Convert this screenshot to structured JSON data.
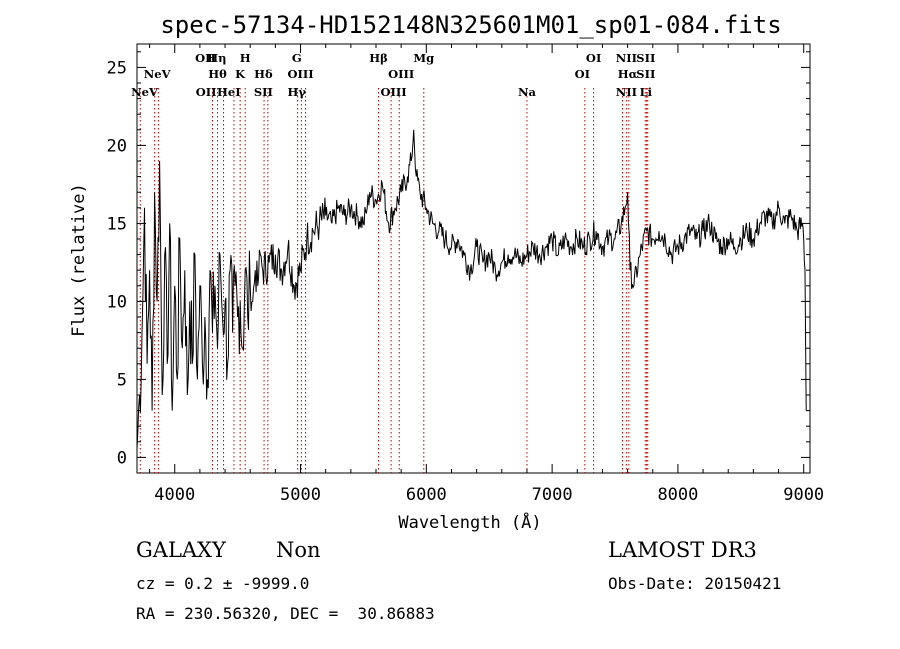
{
  "chart_data": {
    "type": "line",
    "title": "spec-57134-HD152148N325601M01_sp01-084.fits",
    "xlabel": "Wavelength (Å)",
    "ylabel": "Flux (relative)",
    "xlim": [
      3700,
      9050
    ],
    "ylim": [
      -1,
      26.5
    ],
    "xticks": [
      4000,
      5000,
      6000,
      7000,
      8000,
      9000
    ],
    "yticks": [
      0,
      5,
      10,
      15,
      20,
      25
    ],
    "series": [
      {
        "name": "spectrum",
        "x": [
          3700,
          3720,
          3740,
          3760,
          3780,
          3800,
          3820,
          3840,
          3860,
          3880,
          3900,
          3920,
          3940,
          3960,
          3980,
          4000,
          4020,
          4040,
          4060,
          4080,
          4100,
          4120,
          4140,
          4160,
          4180,
          4200,
          4220,
          4240,
          4260,
          4280,
          4300,
          4320,
          4340,
          4360,
          4380,
          4400,
          4420,
          4440,
          4460,
          4480,
          4500,
          4520,
          4540,
          4560,
          4580,
          4600,
          4620,
          4640,
          4660,
          4680,
          4700,
          4750,
          4800,
          4850,
          4900,
          4950,
          5000,
          5050,
          5100,
          5150,
          5200,
          5250,
          5300,
          5350,
          5400,
          5450,
          5500,
          5530,
          5550,
          5600,
          5650,
          5700,
          5750,
          5800,
          5850,
          5880,
          5900,
          5920,
          5950,
          6000,
          6050,
          6100,
          6150,
          6200,
          6250,
          6300,
          6350,
          6400,
          6450,
          6500,
          6550,
          6600,
          6650,
          6700,
          6750,
          6800,
          6850,
          6900,
          6950,
          7000,
          7050,
          7100,
          7150,
          7200,
          7250,
          7300,
          7350,
          7400,
          7450,
          7500,
          7550,
          7580,
          7600,
          7620,
          7650,
          7700,
          7750,
          7800,
          7850,
          7900,
          7950,
          8000,
          8050,
          8100,
          8150,
          8200,
          8250,
          8300,
          8350,
          8400,
          8450,
          8500,
          8550,
          8600,
          8650,
          8700,
          8750,
          8800,
          8850,
          8900,
          8950,
          8990,
          9000,
          9010,
          9020
        ],
        "values": [
          0.5,
          4,
          8,
          16,
          6,
          12,
          3,
          17,
          10,
          19,
          4,
          13,
          6,
          15,
          3,
          11,
          5,
          14,
          7,
          12,
          4,
          10,
          6,
          13,
          5,
          11,
          6,
          9,
          5,
          12,
          8,
          11,
          7,
          13,
          9,
          10,
          6,
          12,
          8,
          11,
          9,
          10,
          7,
          12,
          9,
          11,
          10,
          12,
          11,
          13,
          12,
          12.5,
          13,
          12,
          13.5,
          11,
          12,
          14,
          14.5,
          15,
          15.5,
          15,
          16,
          15.5,
          16,
          15.5,
          15,
          16,
          17,
          16.5,
          17.5,
          15,
          16,
          17,
          18,
          19,
          21,
          18,
          17,
          16,
          15,
          14.5,
          14,
          13.5,
          14,
          13,
          12,
          13.5,
          12.5,
          13,
          12,
          12.5,
          13,
          13,
          12.5,
          13,
          13.5,
          13,
          13.5,
          14,
          13,
          14,
          13.5,
          14,
          13.5,
          14,
          14.5,
          13.5,
          14,
          14,
          15,
          16,
          17,
          12,
          11,
          13,
          14.5,
          14,
          14.5,
          14,
          13,
          13.5,
          14,
          14.5,
          14,
          14.5,
          15,
          14,
          13.5,
          14,
          13.5,
          14,
          14.5,
          14,
          15,
          15.5,
          15,
          16,
          15,
          15.5,
          14.5,
          15,
          14,
          12,
          3
        ]
      }
    ],
    "lines": [
      {
        "wave": 3840,
        "label": "NeV",
        "lx": 3860,
        "row": 1
      },
      {
        "wave": 3870,
        "label": "NeV",
        "lx": 3760,
        "row": 2
      },
      {
        "wave": 3726,
        "label": "OII",
        "lx": 4245,
        "row": 0
      },
      {
        "wave": 4300,
        "label": "OII",
        "lx": 4250,
        "row": 2
      },
      {
        "wave": 4340,
        "label": "Hη",
        "lx": 4335,
        "row": 0
      },
      {
        "wave": 4388,
        "label": "Hθ",
        "lx": 4340,
        "row": 1
      },
      {
        "wave": 4471,
        "label": "HeI",
        "lx": 4430,
        "row": 2
      },
      {
        "wave": 4520,
        "label": "K",
        "lx": 4520,
        "row": 1
      },
      {
        "wave": 4560,
        "label": "H",
        "lx": 4560,
        "row": 0
      },
      {
        "wave": 4710,
        "label": "Hδ",
        "lx": 4705,
        "row": 1
      },
      {
        "wave": 4740,
        "label": "SII",
        "lx": 4705,
        "row": 2
      },
      {
        "wave": 4977,
        "label": "G",
        "lx": 4970,
        "row": 0
      },
      {
        "wave": 5007,
        "label": "OIII",
        "lx": 5000,
        "row": 1
      },
      {
        "wave": 5040,
        "label": "Hγ",
        "lx": 4970,
        "row": 2
      },
      {
        "wave": 5620,
        "label": "Hβ",
        "lx": 5620,
        "row": 0
      },
      {
        "wave": 5720,
        "label": "OIII",
        "lx": 5800,
        "row": 1
      },
      {
        "wave": 5785,
        "label": "OIII",
        "lx": 5740,
        "row": 2
      },
      {
        "wave": 5980,
        "label": "Mg",
        "lx": 5980,
        "row": 0
      },
      {
        "wave": 6800,
        "label": "Na",
        "lx": 6800,
        "row": 2
      },
      {
        "wave": 7260,
        "label": "OI",
        "lx": 7330,
        "row": 0
      },
      {
        "wave": 7330,
        "label": "OI",
        "lx": 7240,
        "row": 1
      },
      {
        "wave": 7560,
        "label": "NII",
        "lx": 7590,
        "row": 0
      },
      {
        "wave": 7590,
        "label": "Hα",
        "lx": 7600,
        "row": 1
      },
      {
        "wave": 7610,
        "label": "NII",
        "lx": 7590,
        "row": 2
      },
      {
        "wave": 7740,
        "label": "SII",
        "lx": 7745,
        "row": 0
      },
      {
        "wave": 7750,
        "label": "SII",
        "lx": 7745,
        "row": 1
      },
      {
        "wave": 7760,
        "label": "Li",
        "lx": 7745,
        "row": 2
      }
    ]
  },
  "info": {
    "class": "GALAXY",
    "subclass": "Non",
    "survey": "LAMOST DR3",
    "cz": "cz = 0.2 ± -9999.0",
    "obsdate": "Obs-Date: 20150421",
    "radec": "RA = 230.56320, DEC =  30.86883"
  }
}
